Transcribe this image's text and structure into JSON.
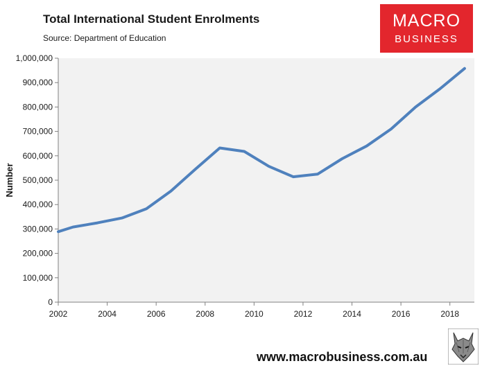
{
  "title": "Total International Student Enrolments",
  "subtitle": "Source: Department of Education",
  "logo": {
    "line1": "MACRO",
    "line2": "BUSINESS",
    "color": "#e3262d"
  },
  "footer": {
    "url": "www.macrobusiness.com.au"
  },
  "icons": {
    "logo_mascot": "wolf-icon"
  },
  "chart_data": {
    "type": "line",
    "ylabel": "Number",
    "xlabel": "",
    "xlim": [
      2002,
      2019
    ],
    "ylim": [
      0,
      1000000
    ],
    "x_ticks": [
      2002,
      2004,
      2006,
      2008,
      2010,
      2012,
      2014,
      2016,
      2018
    ],
    "y_ticks": [
      0,
      100000,
      200000,
      300000,
      400000,
      500000,
      600000,
      700000,
      800000,
      900000,
      1000000
    ],
    "y_tick_labels": [
      "0",
      "100,000",
      "200,000",
      "300,000",
      "400,000",
      "500,000",
      "600,000",
      "700,000",
      "800,000",
      "900,000",
      "1,000,000"
    ],
    "grid": false,
    "plot_background": "#f2f2f2",
    "series": [
      {
        "color": "#4f81bd",
        "x": [
          2002,
          2002.6,
          2003.6,
          2004.6,
          2005.6,
          2006.6,
          2007.6,
          2008.6,
          2009.6,
          2010.6,
          2011.6,
          2012.6,
          2013.6,
          2014.6,
          2015.6,
          2016.6,
          2017.6,
          2018.6
        ],
        "values": [
          289000,
          308000,
          325000,
          345000,
          383000,
          455000,
          545000,
          632000,
          618000,
          557000,
          514000,
          525000,
          588000,
          640000,
          710000,
          800000,
          875000,
          958000
        ]
      }
    ]
  }
}
